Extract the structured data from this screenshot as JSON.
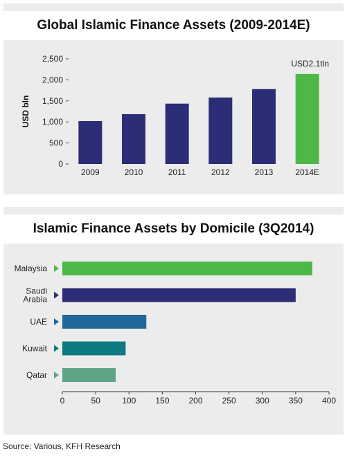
{
  "chart_data": [
    {
      "type": "bar",
      "title": "Global Islamic Finance Assets (2009-2014E)",
      "ylabel": "USD bln",
      "xlabel": "",
      "categories": [
        "2009",
        "2010",
        "2011",
        "2012",
        "2013",
        "2014E"
      ],
      "values": [
        1020,
        1185,
        1435,
        1580,
        1780,
        2140
      ],
      "ylim": [
        0,
        2500
      ],
      "yticks": [
        0,
        500,
        1000,
        1500,
        2000,
        2500
      ],
      "ytick_labels": [
        "0",
        "500",
        "1,000",
        "1,500",
        "2,000",
        "2,500"
      ],
      "annotation": {
        "category": "2014E",
        "text": "USD2.1tln"
      },
      "colors": {
        "default": "#2b2d76",
        "highlight": "#4db848"
      },
      "grid": false
    },
    {
      "type": "bar",
      "orientation": "horizontal",
      "title": "Islamic Finance Assets by Domicile (3Q2014)",
      "xlabel": "",
      "ylabel": "",
      "categories": [
        [
          "Malaysia"
        ],
        [
          "Saudi",
          "Arabia"
        ],
        [
          "UAE"
        ],
        [
          "Kuwait"
        ],
        [
          "Qatar"
        ]
      ],
      "values": [
        375,
        350,
        126,
        95,
        80
      ],
      "xlim": [
        0,
        400
      ],
      "xticks": [
        0,
        50,
        100,
        150,
        200,
        250,
        300,
        350,
        400
      ],
      "colors": [
        "#4db848",
        "#2b2d76",
        "#1f6a9a",
        "#0e7b82",
        "#5fa585"
      ],
      "grid": false
    }
  ],
  "source": "Source: Various, KFH Research"
}
